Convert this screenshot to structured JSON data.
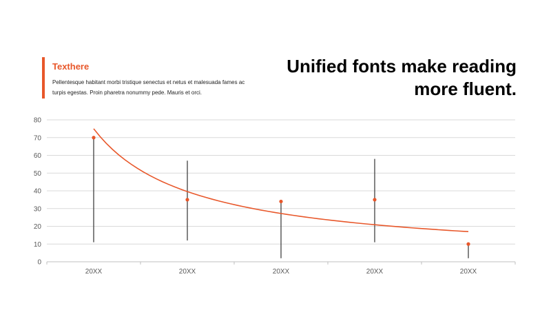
{
  "header": {
    "title": "Texthere",
    "body": "Pellentesque habitant morbi tristique senectus et netus et malesuada fames ac turpis egestas. Proin pharetra nonummy  pede. Mauris et orci.",
    "headline": "Unified fonts make reading more fluent."
  },
  "colors": {
    "accent": "#e8572a",
    "whisker": "#404040",
    "grid": "#d9d9d9",
    "axis": "#bfbfbf"
  },
  "chart_data": {
    "type": "scatter",
    "categories": [
      "20XX",
      "20XX",
      "20XX",
      "20XX",
      "20XX"
    ],
    "values": [
      70,
      35,
      34,
      35,
      10
    ],
    "error_bars": [
      {
        "low": 11,
        "high": 70
      },
      {
        "low": 12,
        "high": 57
      },
      {
        "low": 2,
        "high": 34
      },
      {
        "low": 11,
        "high": 58
      },
      {
        "low": 2,
        "high": 10
      }
    ],
    "trendline": {
      "type": "power",
      "start": 75,
      "end": 17
    },
    "ylim": [
      0,
      80
    ],
    "yticks": [
      0,
      10,
      20,
      30,
      40,
      50,
      60,
      70,
      80
    ],
    "grid": true,
    "legend": "none",
    "title": "",
    "xlabel": "",
    "ylabel": ""
  }
}
